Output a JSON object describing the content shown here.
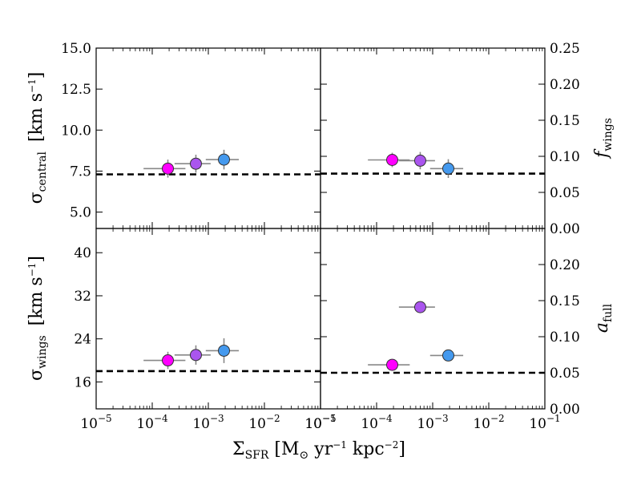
{
  "chart_data": {
    "type": "scatter",
    "x_axis": {
      "scale": "log",
      "xlim": [
        1e-05,
        0.1
      ],
      "tick_labels": [
        "10−5",
        "10−4",
        "10−3",
        "10−2",
        "10−1"
      ],
      "xlabel": {
        "main": "Σ",
        "sub": "SFR",
        "rest": " [M",
        "odot": "⊙",
        "yr": " yr",
        "e1": "−1",
        "kpc": " kpc",
        "e2": "−2",
        "close": "]"
      }
    },
    "reference_line": {
      "style": "dashed",
      "color": "#000000"
    },
    "panels": [
      {
        "id": "sigma_central",
        "ylabel": {
          "symbol": "σ",
          "sub": "central",
          "unit": "[km s",
          "exp": "−1",
          "close": "]"
        },
        "ylabel_side": "left",
        "ylim": [
          4.0,
          15.0
        ],
        "yticks": [
          5.0,
          7.5,
          10.0,
          12.5,
          15.0
        ],
        "ytick_labels": [
          "5.0",
          "7.5",
          "10.0",
          "12.5",
          "15.0"
        ],
        "dashed_y": 7.3,
        "points": [
          {
            "x": 0.00019,
            "y": 7.65,
            "xerr_lo": 0.00012,
            "xerr_hi": 0.0002,
            "yerr": 0.55,
            "color": "#ff00ff"
          },
          {
            "x": 0.0006,
            "y": 7.95,
            "xerr_lo": 0.00035,
            "xerr_hi": 0.0005,
            "yerr": 0.55,
            "color": "#aa55ee"
          },
          {
            "x": 0.0019,
            "y": 8.2,
            "xerr_lo": 0.001,
            "xerr_hi": 0.0016,
            "yerr": 0.6,
            "color": "#4499ee"
          }
        ]
      },
      {
        "id": "f_wings",
        "ylabel": {
          "symbol": "f",
          "sub": "wings"
        },
        "ylabel_side": "right",
        "ylim": [
          0.0,
          0.25
        ],
        "yticks": [
          0.0,
          0.05,
          0.1,
          0.15,
          0.2,
          0.25
        ],
        "ytick_labels": [
          "0.00",
          "0.05",
          "0.10",
          "0.15",
          "0.20",
          "0.25"
        ],
        "dashed_y": 0.076,
        "points": [
          {
            "x": 0.00019,
            "y": 0.095,
            "xerr_lo": 0.00012,
            "xerr_hi": 0.0002,
            "yerr": 0.01,
            "color": "#ff00ff"
          },
          {
            "x": 0.0006,
            "y": 0.094,
            "xerr_lo": 0.00035,
            "xerr_hi": 0.0005,
            "yerr": 0.012,
            "color": "#aa55ee"
          },
          {
            "x": 0.0019,
            "y": 0.083,
            "xerr_lo": 0.001,
            "xerr_hi": 0.0016,
            "yerr": 0.013,
            "color": "#4499ee"
          }
        ]
      },
      {
        "id": "sigma_wings",
        "ylabel": {
          "symbol": "σ",
          "sub": "wings",
          "unit": "[km s",
          "exp": "−1",
          "close": "]"
        },
        "ylabel_side": "left",
        "ylim": [
          11.0,
          44.5
        ],
        "yticks": [
          16,
          24,
          32,
          40
        ],
        "ytick_labels": [
          "16",
          "24",
          "32",
          "40"
        ],
        "dashed_y": 18.0,
        "points": [
          {
            "x": 0.00019,
            "y": 20.0,
            "xerr_lo": 0.00012,
            "xerr_hi": 0.0002,
            "yerr": 1.6,
            "color": "#ff00ff"
          },
          {
            "x": 0.0006,
            "y": 21.0,
            "xerr_lo": 0.00035,
            "xerr_hi": 0.0005,
            "yerr": 1.8,
            "color": "#aa55ee"
          },
          {
            "x": 0.0019,
            "y": 21.8,
            "xerr_lo": 0.001,
            "xerr_hi": 0.0016,
            "yerr": 2.3,
            "color": "#4499ee"
          }
        ]
      },
      {
        "id": "a_full",
        "ylabel": {
          "symbol": "a",
          "sub": "full"
        },
        "ylabel_side": "right",
        "ylim": [
          0.0,
          0.25
        ],
        "yticks": [
          0.0,
          0.05,
          0.1,
          0.15,
          0.2
        ],
        "ytick_labels": [
          "0.00",
          "0.05",
          "0.10",
          "0.15",
          "0.20"
        ],
        "dashed_y": 0.05,
        "points": [
          {
            "x": 0.00019,
            "y": 0.061,
            "xerr_lo": 0.00012,
            "xerr_hi": 0.0002,
            "yerr": 0.0,
            "color": "#ff00ff"
          },
          {
            "x": 0.0006,
            "y": 0.141,
            "xerr_lo": 0.00035,
            "xerr_hi": 0.0005,
            "yerr": 0.0,
            "color": "#aa55ee"
          },
          {
            "x": 0.0019,
            "y": 0.074,
            "xerr_lo": 0.001,
            "xerr_hi": 0.0016,
            "yerr": 0.0,
            "color": "#4499ee"
          }
        ]
      }
    ]
  }
}
